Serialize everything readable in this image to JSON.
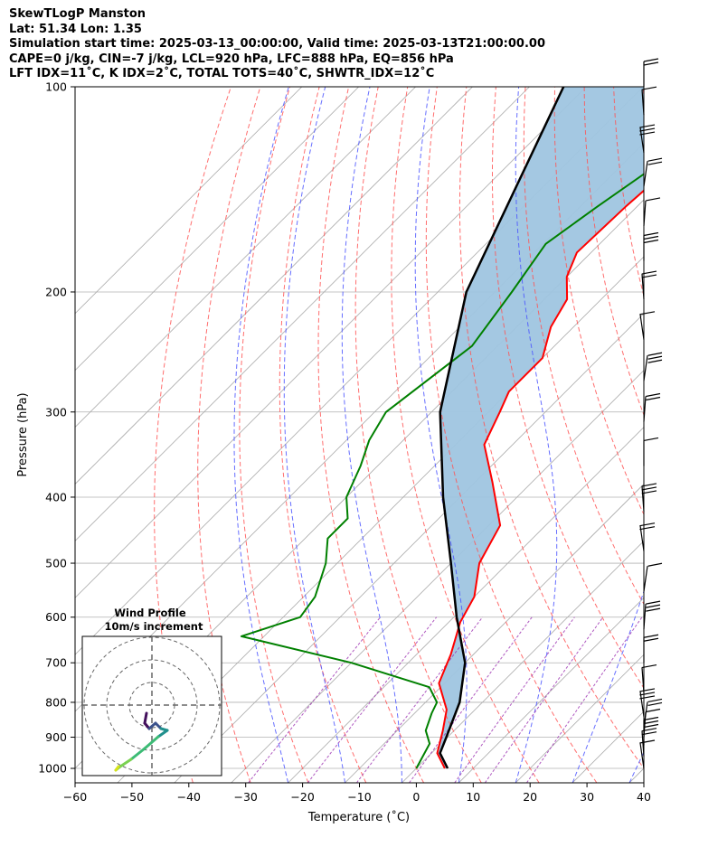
{
  "header": {
    "line1": "SkewTLogP Manston",
    "line2": "Lat: 51.34   Lon: 1.35",
    "line3": "Simulation start time: 2025-03-13_00:00:00, Valid time: 2025-03-13T21:00:00.00",
    "line4": "CAPE=0 j/kg, CIN=-7 j/kg, LCL=920 hPa, LFC=888 hPa, EQ=856 hPa",
    "line5": "LFT IDX=11˚C, K IDX=2˚C, TOTAL TOTS=40˚C, SHWTR_IDX=12˚C"
  },
  "chart_data": {
    "type": "line",
    "xlabel": "Temperature (˚C)",
    "ylabel": "Pressure (hPa)",
    "xlim": [
      -60,
      40
    ],
    "ylim": [
      1050,
      100
    ],
    "yscale": "log",
    "x_ticks": [
      -60,
      -50,
      -40,
      -30,
      -20,
      -10,
      0,
      10,
      20,
      30,
      40
    ],
    "x_tick_labels": [
      "−60",
      "−50",
      "−40",
      "−30",
      "−20",
      "−10",
      "0",
      "10",
      "20",
      "30",
      "40"
    ],
    "y_ticks": [
      1000,
      900,
      800,
      700,
      600,
      500,
      400,
      300,
      200,
      100
    ],
    "y_tick_labels": [
      "1000",
      "900",
      "800",
      "700",
      "600",
      "500",
      "400",
      "300",
      "200",
      "100"
    ],
    "grid": true,
    "colors": {
      "temperature": "#ff0000",
      "dewpoint": "#008000",
      "parcel": "#000000",
      "cape_fill": "#9fc5e0",
      "dry_adiabats": "#ff5555",
      "moist_adiabats": "#4b55ff",
      "mixing_ratio": "#9b30b0",
      "isotherms": "#aaaaaa"
    },
    "series": [
      {
        "role": "temperature",
        "p": [
          100,
          115,
          130,
          150,
          175,
          190,
          205,
          225,
          250,
          280,
          300,
          335,
          380,
          440,
          500,
          560,
          610,
          680,
          750,
          820,
          880,
          950,
          1000
        ],
        "values": [
          -60,
          -61,
          -61,
          -62,
          -62.5,
          -60,
          -56,
          -54,
          -50,
          -50,
          -48,
          -45,
          -37,
          -28,
          -25,
          -20,
          -18,
          -14,
          -11,
          -5,
          -2,
          1,
          5
        ]
      },
      {
        "role": "dewpoint",
        "p": [
          100,
          120,
          150,
          170,
          200,
          240,
          300,
          330,
          360,
          400,
          430,
          460,
          500,
          560,
          600,
          640,
          700,
          760,
          800,
          830,
          880,
          920,
          1000
        ],
        "values": [
          -58,
          -62,
          -67,
          -69.5,
          -67,
          -64.5,
          -68,
          -66,
          -63,
          -60,
          -56,
          -56,
          -52,
          -48,
          -47,
          -54,
          -30,
          -12,
          -8,
          -7,
          -5,
          -2,
          0
        ]
      },
      {
        "role": "parcel",
        "p": [
          100,
          200,
          300,
          400,
          500,
          600,
          700,
          800,
          900,
          950,
          1000
        ],
        "values": [
          -94,
          -75,
          -58.5,
          -43,
          -30,
          -19.5,
          -10,
          -4,
          -0.2,
          1.5,
          5.5
        ]
      }
    ],
    "wind_barbs": [
      {
        "p": 1000
      },
      {
        "p": 960
      },
      {
        "p": 925
      },
      {
        "p": 900
      },
      {
        "p": 870
      },
      {
        "p": 840
      },
      {
        "p": 775
      },
      {
        "p": 700
      },
      {
        "p": 625
      },
      {
        "p": 550
      },
      {
        "p": 480
      },
      {
        "p": 420
      },
      {
        "p": 360
      },
      {
        "p": 310
      },
      {
        "p": 270
      },
      {
        "p": 235
      },
      {
        "p": 205
      },
      {
        "p": 180
      },
      {
        "p": 160
      },
      {
        "p": 140
      },
      {
        "p": 125
      },
      {
        "p": 110
      },
      {
        "p": 100
      }
    ],
    "inset": {
      "title": "Wind Profile",
      "subtitle": "10m/s increment",
      "hodograph_colors": [
        "#43105c",
        "#3b528b",
        "#21908d",
        "#3cbb75",
        "#7ad151",
        "#d8e219"
      ]
    }
  }
}
